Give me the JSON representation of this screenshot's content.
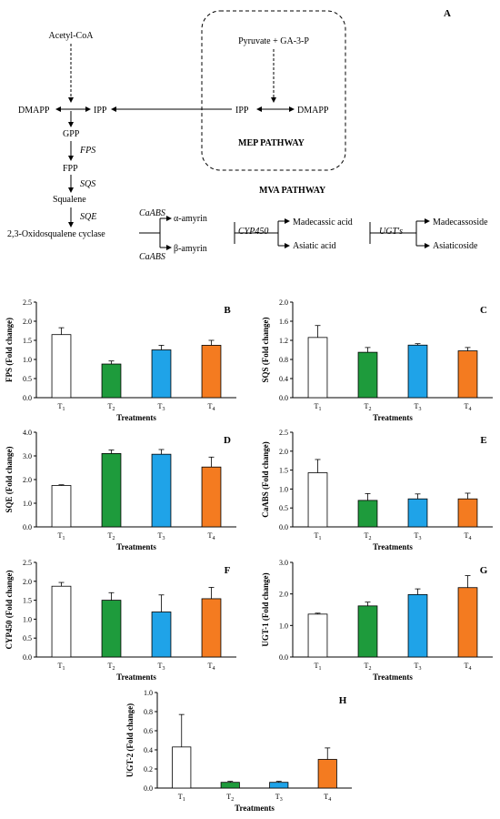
{
  "figure": {
    "panel_label": "A"
  },
  "pathway": {
    "nodes": {
      "acetyl": "Acetyl-CoA",
      "pyruvate": "Pyruvate + GA-3-P",
      "dmapp_left": "DMAPP",
      "ipp_left": "IPP",
      "ipp_right": "IPP",
      "dmapp_right": "DMAPP",
      "gpp": "GPP",
      "fpp": "FPP",
      "squalene": "Squalene",
      "oxido": "2,3-Oxidosqualene cyclase",
      "alpha": "α-amyrin",
      "beta": "β-amyrin",
      "madecassic": "Madecassic acid",
      "asiatic": "Asiatic acid",
      "madecassoside": "Madecassoside",
      "asiaticoside": "Asiaticoside"
    },
    "enzymes": {
      "fps": "FPS",
      "sqs": "SQS",
      "sqe": "SQE",
      "caabs_top": "CaABS",
      "caabs_bottom": "CaABS",
      "cyp450": "CYP450",
      "ugts": "UGT's"
    },
    "labels": {
      "mep": "MEP PATHWAY",
      "mva": "MVA PATHWAY"
    }
  },
  "colors": {
    "T1": "#ffffff",
    "T2": "#1e9b3c",
    "T3": "#1fa3e8",
    "T4": "#f47b20",
    "bar_border": "#000000"
  },
  "chart_data": [
    {
      "panel": "B",
      "type": "bar",
      "categories": [
        "T1",
        "T2",
        "T3",
        "T4"
      ],
      "category_sub": [
        "1",
        "2",
        "3",
        "4"
      ],
      "values": [
        1.65,
        0.88,
        1.25,
        1.37
      ],
      "errors": [
        0.18,
        0.08,
        0.12,
        0.13
      ],
      "ylabel": "FPS (Fold change)",
      "xlabel": "Treatments",
      "ylim": [
        0,
        2.5
      ],
      "yticks": [
        "0.0",
        "0.5",
        "1.0",
        "1.5",
        "2.0",
        "2.5"
      ]
    },
    {
      "panel": "C",
      "type": "bar",
      "categories": [
        "T1",
        "T2",
        "T3",
        "T4"
      ],
      "category_sub": [
        "1",
        "2",
        "3",
        "4"
      ],
      "values": [
        1.26,
        0.95,
        1.1,
        0.98
      ],
      "errors": [
        0.25,
        0.1,
        0.03,
        0.07
      ],
      "ylabel": "SQS (Fold change)",
      "xlabel": "Treatments",
      "ylim": [
        0,
        2.0
      ],
      "yticks": [
        "0.0",
        "0.4",
        "0.8",
        "1.2",
        "1.6",
        "2.0"
      ]
    },
    {
      "panel": "D",
      "type": "bar",
      "categories": [
        "T1",
        "T2",
        "T3",
        "T4"
      ],
      "category_sub": [
        "1",
        "2",
        "3",
        "4"
      ],
      "values": [
        1.75,
        3.1,
        3.07,
        2.53
      ],
      "errors": [
        0.03,
        0.15,
        0.2,
        0.42
      ],
      "ylabel": "SQE (Fold change)",
      "xlabel": "Treatments",
      "ylim": [
        0,
        4.0
      ],
      "yticks": [
        "0.0",
        "1.0",
        "2.0",
        "3.0",
        "4.0"
      ]
    },
    {
      "panel": "E",
      "type": "bar",
      "categories": [
        "T1",
        "T2",
        "T3",
        "T4"
      ],
      "category_sub": [
        "1",
        "2",
        "3",
        "4"
      ],
      "values": [
        1.43,
        0.7,
        0.74,
        0.74
      ],
      "errors": [
        0.35,
        0.18,
        0.13,
        0.15
      ],
      "ylabel": "CaABS (Fold change)",
      "xlabel": "Treatments",
      "ylim": [
        0,
        2.5
      ],
      "yticks": [
        "0.0",
        "0.5",
        "1.0",
        "1.5",
        "2.0",
        "2.5"
      ]
    },
    {
      "panel": "F",
      "type": "bar",
      "categories": [
        "T1",
        "T2",
        "T3",
        "T4"
      ],
      "category_sub": [
        "1",
        "2",
        "3",
        "4"
      ],
      "values": [
        1.87,
        1.5,
        1.19,
        1.54
      ],
      "errors": [
        0.1,
        0.2,
        0.45,
        0.3
      ],
      "ylabel": "CYP450 (Fold change)",
      "xlabel": "Treatments",
      "ylim": [
        0,
        2.5
      ],
      "yticks": [
        "0.0",
        "0.5",
        "1.0",
        "1.5",
        "2.0",
        "2.5"
      ]
    },
    {
      "panel": "G",
      "type": "bar",
      "categories": [
        "T1",
        "T2",
        "T3",
        "T4"
      ],
      "category_sub": [
        "1",
        "2",
        "3",
        "4"
      ],
      "values": [
        1.36,
        1.62,
        1.98,
        2.2
      ],
      "errors": [
        0.03,
        0.12,
        0.18,
        0.38
      ],
      "ylabel": "UGT-1 (Fold change)",
      "xlabel": "Treatments",
      "ylim": [
        0,
        3.0
      ],
      "yticks": [
        "0.0",
        "1.0",
        "2.0",
        "3.0"
      ]
    },
    {
      "panel": "H",
      "type": "bar",
      "categories": [
        "T1",
        "T2",
        "T3",
        "T4"
      ],
      "category_sub": [
        "1",
        "2",
        "3",
        "4"
      ],
      "values": [
        0.43,
        0.06,
        0.06,
        0.3
      ],
      "errors": [
        0.34,
        0.01,
        0.01,
        0.12
      ],
      "ylabel": "UGT-2 (Fold change)",
      "xlabel": "Treatments",
      "ylim": [
        0,
        1.0
      ],
      "yticks": [
        "0.0",
        "0.2",
        "0.4",
        "0.6",
        "0.8",
        "1.0"
      ]
    }
  ]
}
